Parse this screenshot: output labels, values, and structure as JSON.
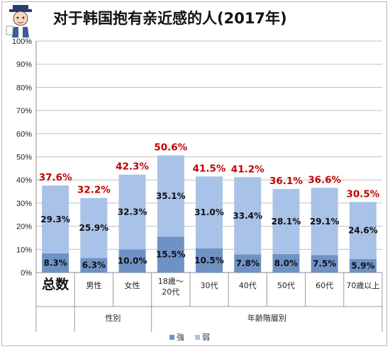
{
  "chart_data": {
    "type": "bar",
    "stacked": true,
    "title": "对于韩国抱有亲近感的人(2017年)",
    "ylim": [
      0,
      100
    ],
    "yticks": [
      "0%",
      "10%",
      "20%",
      "30%",
      "40%",
      "50%",
      "60%",
      "70%",
      "80%",
      "90%",
      "100%"
    ],
    "grid": true,
    "legend_position": "bottom",
    "categories": [
      "总数",
      "男性",
      "女性",
      "18歳～20代",
      "30代",
      "40代",
      "50代",
      "60代",
      "70歳以上"
    ],
    "category_lines": [
      [
        "总数"
      ],
      [
        "男性"
      ],
      [
        "女性"
      ],
      [
        "18歳～",
        "20代"
      ],
      [
        "30代"
      ],
      [
        "40代"
      ],
      [
        "50代"
      ],
      [
        "60代"
      ],
      [
        "70歳以上"
      ]
    ],
    "groups": [
      {
        "label": "性別",
        "start": 1,
        "end": 2
      },
      {
        "label": "年齢階層別",
        "start": 3,
        "end": 8
      }
    ],
    "series": [
      {
        "name": "強",
        "color": "#6f92c6",
        "values": [
          8.3,
          6.3,
          10.0,
          15.5,
          10.5,
          7.8,
          8.0,
          7.5,
          5.9
        ],
        "labels": [
          "8.3%",
          "6.3%",
          "10.0%",
          "15.5%",
          "10.5%",
          "7.8%",
          "8.0%",
          "7.5%",
          "5.9%"
        ]
      },
      {
        "name": "弱",
        "color": "#a9c2e8",
        "values": [
          29.3,
          25.9,
          32.3,
          35.1,
          31.0,
          33.4,
          28.1,
          29.1,
          24.6
        ],
        "labels": [
          "29.3%",
          "25.9%",
          "32.3%",
          "35.1%",
          "31.0%",
          "33.4%",
          "28.1%",
          "29.1%",
          "24.6%"
        ]
      }
    ],
    "totals": [
      37.6,
      32.2,
      42.3,
      50.6,
      41.5,
      41.2,
      36.1,
      36.6,
      30.5
    ],
    "total_labels": [
      "37.6%",
      "32.2%",
      "42.3%",
      "50.6%",
      "41.5%",
      "41.2%",
      "36.1%",
      "36.6%",
      "30.5%"
    ],
    "total_label_color": "#c00000"
  },
  "icons": {
    "logo": "cartoon-mascot-logo"
  }
}
